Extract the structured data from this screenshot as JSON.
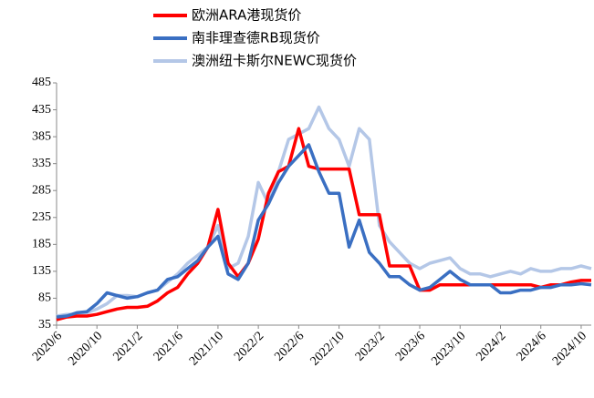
{
  "chart_data": {
    "type": "line",
    "categories": [
      "2020/6",
      null,
      null,
      null,
      "2020/10",
      null,
      null,
      null,
      "2021/2",
      null,
      null,
      null,
      "2021/6",
      null,
      null,
      null,
      "2021/10",
      null,
      null,
      null,
      "2022/2",
      null,
      null,
      null,
      "2022/6",
      null,
      null,
      null,
      "2022/10",
      null,
      null,
      null,
      "2023/2",
      null,
      null,
      null,
      "2023/6",
      null,
      null,
      null,
      "2023/10",
      null,
      null,
      null,
      "2024/2",
      null,
      null,
      null,
      "2024/6",
      null,
      null,
      null,
      "2024/10",
      null
    ],
    "series": [
      {
        "name": "欧洲ARA港现货价",
        "color": "#ff0000",
        "values": [
          45,
          50,
          52,
          52,
          55,
          60,
          65,
          68,
          68,
          70,
          80,
          95,
          105,
          130,
          150,
          180,
          250,
          150,
          125,
          150,
          195,
          280,
          320,
          330,
          400,
          330,
          325,
          325,
          325,
          325,
          240,
          240,
          240,
          145,
          145,
          145,
          100,
          100,
          110,
          110,
          110,
          110,
          110,
          110,
          110,
          110,
          110,
          110,
          105,
          110,
          110,
          115,
          118,
          118
        ]
      },
      {
        "name": "南非理查德RB现货价",
        "color": "#3a6fc2",
        "values": [
          50,
          52,
          58,
          60,
          75,
          95,
          90,
          85,
          88,
          95,
          100,
          120,
          125,
          140,
          155,
          180,
          200,
          130,
          120,
          150,
          230,
          260,
          300,
          330,
          350,
          370,
          320,
          280,
          280,
          180,
          230,
          170,
          150,
          125,
          125,
          110,
          100,
          105,
          120,
          135,
          120,
          110,
          110,
          110,
          95,
          95,
          100,
          100,
          105,
          105,
          110,
          110,
          112,
          110
        ]
      },
      {
        "name": "澳洲纽卡斯尔NEWC现货价",
        "color": "#b4c7e7",
        "values": [
          52,
          55,
          55,
          58,
          65,
          75,
          90,
          90,
          88,
          95,
          100,
          115,
          130,
          150,
          165,
          180,
          220,
          140,
          150,
          200,
          300,
          260,
          320,
          380,
          390,
          400,
          440,
          400,
          380,
          330,
          400,
          380,
          220,
          190,
          170,
          150,
          140,
          150,
          155,
          160,
          140,
          130,
          130,
          125,
          130,
          135,
          130,
          140,
          135,
          135,
          140,
          140,
          145,
          140
        ]
      }
    ],
    "ylim": [
      35,
      485
    ],
    "yticks": [
      35,
      85,
      135,
      185,
      235,
      285,
      335,
      385,
      435,
      485
    ]
  }
}
